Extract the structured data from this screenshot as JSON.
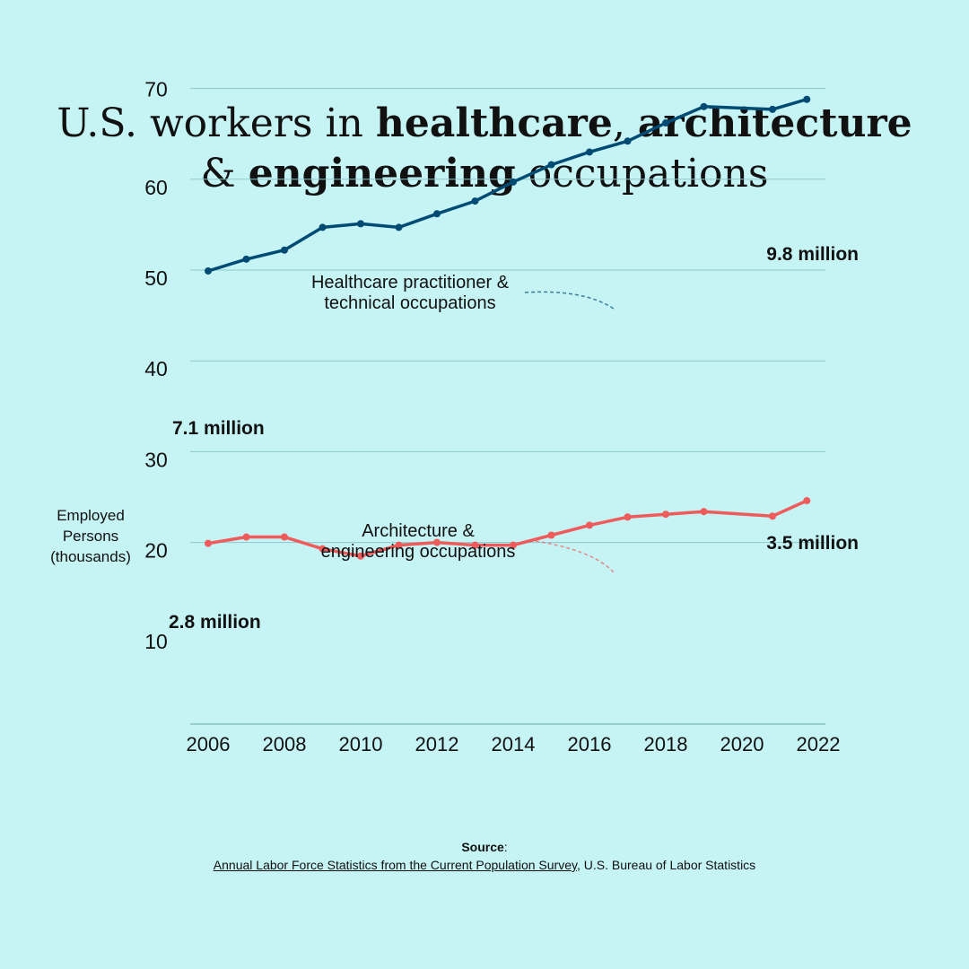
{
  "title": {
    "line1_prefix": "U.S. workers in ",
    "line1_bold1": "healthcare",
    "line1_mid": ", ",
    "line1_bold2": "architecture",
    "line2_prefix": "& ",
    "line2_bold": "engineering",
    "line2_suffix": " occupations"
  },
  "source": {
    "label": "Source",
    "colon": ":",
    "link_text": "Annual Labor Force Statistics from the Current Population Survey",
    "rest": ", U.S. Bureau of Labor Statistics"
  },
  "chart_data": {
    "type": "line",
    "ylabel": [
      "Employed",
      "Persons",
      "(thousands)"
    ],
    "xticks": [
      2006,
      2008,
      2010,
      2012,
      2014,
      2016,
      2018,
      2020,
      2022
    ],
    "yticks": [
      10,
      20,
      30,
      40,
      50,
      60,
      70
    ],
    "xlim": [
      2005.5,
      2022.2
    ],
    "ylim": [
      0,
      75
    ],
    "grid": true,
    "series": [
      {
        "name": [
          "Healthcare practitioner &",
          "technical occupations"
        ],
        "color": "#004b73",
        "points": [
          [
            2006,
            49.9
          ],
          [
            2007,
            51.2
          ],
          [
            2008,
            52.2
          ],
          [
            2009,
            54.7
          ],
          [
            2010,
            55.1
          ],
          [
            2011,
            54.7
          ],
          [
            2012,
            56.2
          ],
          [
            2013,
            57.6
          ],
          [
            2014,
            59.7
          ],
          [
            2015,
            61.6
          ],
          [
            2016,
            63.0
          ],
          [
            2017,
            64.2
          ],
          [
            2018,
            66.2
          ],
          [
            2019,
            68.0
          ],
          [
            2020.8,
            67.7
          ],
          [
            2021.7,
            68.8
          ]
        ],
        "start_label": "7.1 million",
        "end_label": "9.8 million"
      },
      {
        "name": [
          "Architecture &",
          "engineering occupations"
        ],
        "color": "#ef5b5b",
        "points": [
          [
            2006,
            19.9
          ],
          [
            2007,
            20.6
          ],
          [
            2008,
            20.6
          ],
          [
            2009,
            19.3
          ],
          [
            2010,
            18.5
          ],
          [
            2011,
            19.7
          ],
          [
            2012,
            20.0
          ],
          [
            2013,
            19.7
          ],
          [
            2014,
            19.7
          ],
          [
            2015,
            20.8
          ],
          [
            2016,
            21.9
          ],
          [
            2017,
            22.8
          ],
          [
            2018,
            23.1
          ],
          [
            2019,
            23.4
          ],
          [
            2020.8,
            22.9
          ],
          [
            2021.7,
            24.6
          ]
        ],
        "start_label": "2.8 million",
        "end_label": "3.5 million"
      }
    ]
  }
}
